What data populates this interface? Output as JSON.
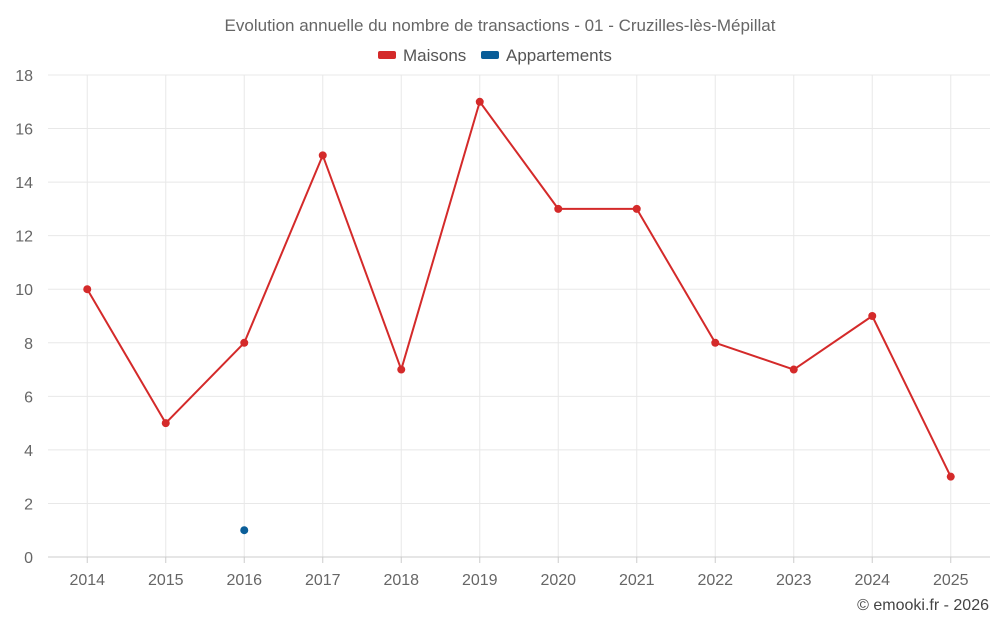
{
  "chart_data": {
    "type": "line",
    "title": "Evolution annuelle du nombre de transactions - 01 - Cruzilles-lès-Mépillat",
    "categories": [
      "2014",
      "2015",
      "2016",
      "2017",
      "2018",
      "2019",
      "2020",
      "2021",
      "2022",
      "2023",
      "2024",
      "2025"
    ],
    "series": [
      {
        "name": "Maisons",
        "color": "#d42a2a",
        "values": [
          10,
          5,
          8,
          15,
          7,
          17,
          13,
          13,
          8,
          7,
          9,
          3
        ]
      },
      {
        "name": "Appartements",
        "color": "#0a5e99",
        "values": [
          null,
          null,
          1,
          null,
          null,
          null,
          null,
          null,
          null,
          null,
          null,
          null
        ]
      }
    ],
    "ylim": [
      0,
      18
    ],
    "yticks": [
      0,
      2,
      4,
      6,
      8,
      10,
      12,
      14,
      16,
      18
    ],
    "grid": true,
    "legend": "top-center",
    "xlabel": "",
    "ylabel": ""
  },
  "credit": "© emooki.fr - 2026"
}
